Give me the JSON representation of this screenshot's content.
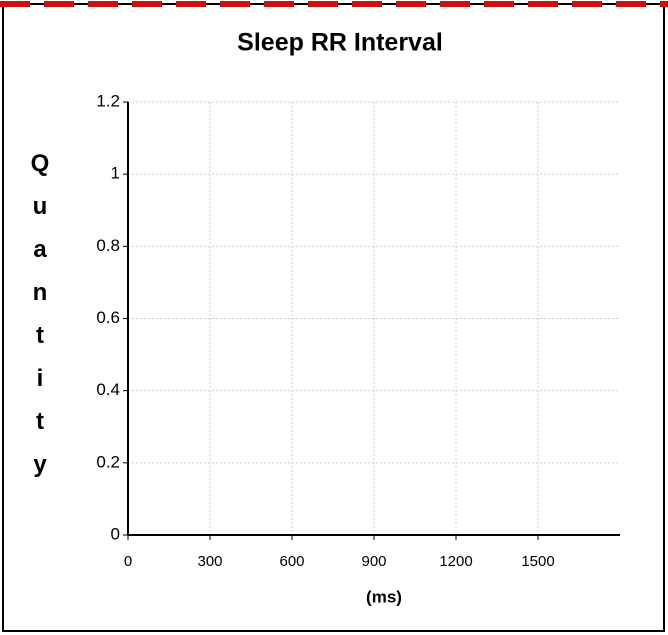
{
  "chart_data": {
    "type": "line",
    "title": "Sleep RR Interval",
    "ylabel": "Quantity",
    "xlabel": "(ms)",
    "xlim": [
      0,
      1800
    ],
    "xticks": [
      0,
      300,
      600,
      900,
      1200,
      1500
    ],
    "ylim": [
      0,
      1.2
    ],
    "yticks": [
      0,
      0.2,
      0.4,
      0.6,
      0.8,
      1,
      1.2
    ],
    "grid": true
  }
}
